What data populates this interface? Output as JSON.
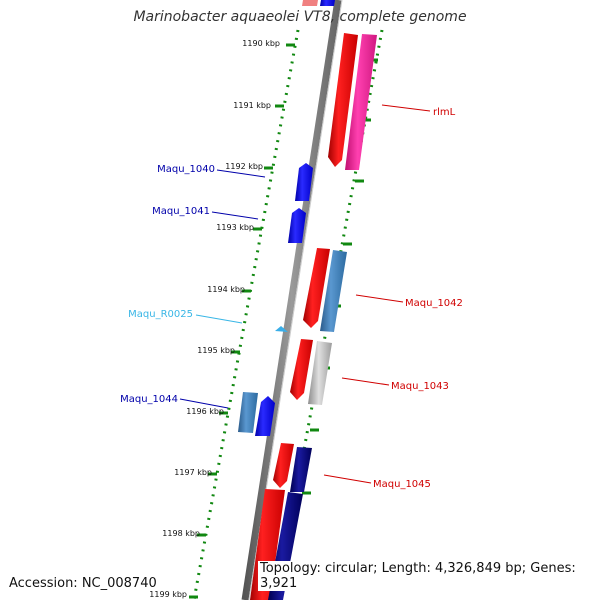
{
  "title": "Marinobacter aquaeolei VT8, complete genome",
  "accession": "Accession: NC_008740",
  "summary": "Topology: circular; Length: 4,326,849 bp; Genes: 3,921",
  "ticks": [
    "1190 kbp",
    "1191 kbp",
    "1192 kbp",
    "1193 kbp",
    "1194 kbp",
    "1195 kbp",
    "1196 kbp",
    "1197 kbp",
    "1198 kbp",
    "1199 kbp"
  ],
  "colors": {
    "forward_cds": "#e00000",
    "reverse_cds": "#1010e0",
    "forward_feature_pink": "#ff2aa0",
    "forward_feature_steel": "#3a78b4",
    "forward_feature_gray": "#b0b0b0",
    "reverse_feature_steel": "#3a78b4",
    "navy_feature": "#0a0a78",
    "rna": "#3aaee8",
    "backbone": "#777777",
    "gc_dots": "#118811"
  },
  "genes": [
    {
      "label": "rlmL",
      "color": "#d00000"
    },
    {
      "label": "Maqu_1040",
      "color": "#0000aa"
    },
    {
      "label": "Maqu_1041",
      "color": "#0000aa"
    },
    {
      "label": "Maqu_1042",
      "color": "#d00000"
    },
    {
      "label": "Maqu_R0025",
      "color": "#39b6e6"
    },
    {
      "label": "Maqu_1043",
      "color": "#d00000"
    },
    {
      "label": "Maqu_1044",
      "color": "#0000aa"
    },
    {
      "label": "Maqu_1045",
      "color": "#d00000"
    }
  ]
}
